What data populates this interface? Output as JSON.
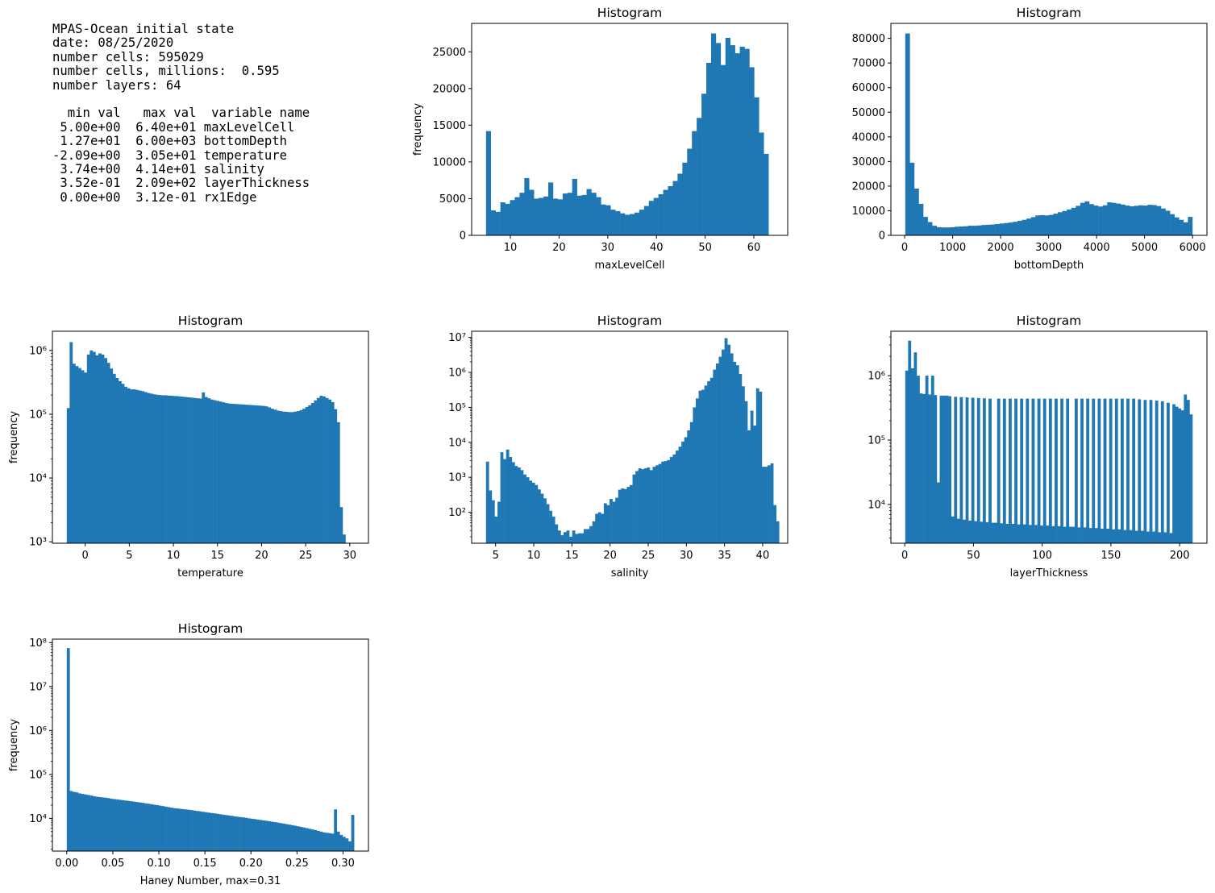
{
  "info": {
    "header_lines": [
      "MPAS-Ocean initial state",
      "date: 08/25/2020",
      "number cells: 595029",
      "number cells, millions:  0.595",
      "number layers: 64"
    ],
    "table_header": "  min val   max val  variable name",
    "table_rows": [
      {
        "min": "5.00e+00",
        "max": "6.40e+01",
        "name": "maxLevelCell"
      },
      {
        "min": "1.27e+01",
        "max": "6.00e+03",
        "name": "bottomDepth"
      },
      {
        "min": "-2.09e+00",
        "max": "3.05e+01",
        "name": "temperature"
      },
      {
        "min": "3.74e+00",
        "max": "4.14e+01",
        "name": "salinity"
      },
      {
        "min": "3.52e-01",
        "max": "2.09e+02",
        "name": "layerThickness"
      },
      {
        "min": "0.00e+00",
        "max": "3.12e-01",
        "name": "rx1Edge"
      }
    ]
  },
  "colors": {
    "bar": "#1f77b4",
    "axes": "#000000",
    "text": "#000000"
  },
  "chart_data": [
    {
      "type": "bar",
      "title": "Histogram",
      "xlabel": "maxLevelCell",
      "ylabel": "frequency",
      "yscale": "linear",
      "xlim": [
        2.05,
        66.95
      ],
      "ylim": [
        0,
        28875
      ],
      "xticks": [
        10,
        20,
        30,
        40,
        50,
        60
      ],
      "xtick_labels": [
        "10",
        "20",
        "30",
        "40",
        "50",
        "60"
      ],
      "yticks": [
        0,
        5000,
        10000,
        15000,
        20000,
        25000
      ],
      "ytick_labels": [
        "0",
        "5000",
        "10000",
        "15000",
        "20000",
        "25000"
      ],
      "bin_start": 5,
      "bin_width": 0.9833,
      "values": [
        14200,
        3400,
        3200,
        4500,
        4300,
        4800,
        5200,
        5800,
        7800,
        6200,
        5000,
        5100,
        5300,
        7200,
        5000,
        4900,
        5700,
        5800,
        7700,
        5400,
        5500,
        6300,
        5800,
        5200,
        4200,
        4100,
        3500,
        3300,
        3000,
        2800,
        2900,
        3100,
        3500,
        4000,
        4700,
        5100,
        5600,
        6200,
        6700,
        7400,
        8400,
        9900,
        11800,
        14200,
        16000,
        19300,
        23500,
        27500,
        26200,
        23200,
        26900,
        25900,
        24800,
        25700,
        25400,
        22900,
        18800,
        14000,
        11100
      ]
    },
    {
      "type": "bar",
      "title": "Histogram",
      "xlabel": "bottomDepth",
      "ylabel": "",
      "yscale": "linear",
      "xlim": [
        -286.9,
        6299.6
      ],
      "ylim": [
        0,
        86100
      ],
      "xticks": [
        0,
        1000,
        2000,
        3000,
        4000,
        5000,
        6000
      ],
      "xtick_labels": [
        "0",
        "1000",
        "2000",
        "3000",
        "4000",
        "5000",
        "6000"
      ],
      "yticks": [
        0,
        10000,
        20000,
        30000,
        40000,
        50000,
        60000,
        70000,
        80000
      ],
      "ytick_labels": [
        "0",
        "10000",
        "20000",
        "30000",
        "40000",
        "50000",
        "60000",
        "70000",
        "80000"
      ],
      "bin_start": 12.7,
      "bin_width": 93.5,
      "values": [
        82000,
        29500,
        19000,
        12800,
        7500,
        5400,
        3900,
        3300,
        3200,
        3200,
        3300,
        3500,
        3600,
        3700,
        3900,
        3900,
        4000,
        4200,
        4300,
        4400,
        4600,
        4800,
        5000,
        5200,
        5500,
        5900,
        6300,
        6800,
        7400,
        8100,
        8200,
        8100,
        8300,
        8800,
        9400,
        9900,
        10500,
        11200,
        12000,
        13200,
        13800,
        12700,
        12100,
        11700,
        12200,
        13400,
        13200,
        12900,
        12500,
        12100,
        11800,
        12000,
        12200,
        12100,
        12400,
        12300,
        11900,
        10900,
        10000,
        8600,
        7300,
        6300,
        5300,
        7500
      ]
    },
    {
      "type": "bar",
      "title": "Histogram",
      "xlabel": "temperature",
      "ylabel": "frequency",
      "yscale": "log",
      "ylim": [
        950,
        2000000
      ],
      "xlim": [
        -3.72,
        32.12
      ],
      "xticks": [
        0,
        5,
        10,
        15,
        20,
        25,
        30
      ],
      "xtick_labels": [
        "0",
        "5",
        "10",
        "15",
        "20",
        "25",
        "30"
      ],
      "yticks": [
        1000,
        10000,
        100000,
        1000000
      ],
      "ytick_labels": [
        "10^3",
        "10^4",
        "10^5",
        "10^6"
      ],
      "bin_start": -2.09,
      "bin_width": 0.3259,
      "values": [
        125000,
        1350000,
        620000,
        570000,
        530000,
        490000,
        450000,
        860000,
        1000000,
        950000,
        840000,
        900000,
        860000,
        760000,
        640000,
        520000,
        430000,
        370000,
        330000,
        300000,
        270000,
        255000,
        245000,
        245000,
        240000,
        235000,
        230000,
        222000,
        215000,
        210000,
        205000,
        202000,
        200000,
        198000,
        198000,
        196000,
        195000,
        193000,
        192000,
        190000,
        188000,
        186000,
        184000,
        182000,
        180000,
        178000,
        176000,
        220000,
        186000,
        178000,
        170000,
        166000,
        162000,
        158000,
        154000,
        150000,
        147000,
        146000,
        145000,
        144000,
        143000,
        142000,
        141000,
        140000,
        139000,
        138000,
        137000,
        136000,
        135000,
        133000,
        128000,
        122000,
        118000,
        114000,
        112000,
        110000,
        109000,
        108000,
        108000,
        110000,
        112000,
        116000,
        122000,
        130000,
        138000,
        150000,
        165000,
        180000,
        195000,
        190000,
        180000,
        170000,
        155000,
        120000,
        75000,
        3500,
        1300
      ]
    },
    {
      "type": "bar",
      "title": "Histogram",
      "xlabel": "salinity",
      "ylabel": "",
      "yscale": "log",
      "ylim": [
        13,
        15000000
      ],
      "xlim": [
        1.86,
        43.28
      ],
      "xticks": [
        5,
        10,
        15,
        20,
        25,
        30,
        35,
        40
      ],
      "xtick_labels": [
        "5",
        "10",
        "15",
        "20",
        "25",
        "30",
        "35",
        "40"
      ],
      "yticks": [
        100,
        1000,
        10000,
        100000,
        1000000,
        10000000
      ],
      "ytick_labels": [
        "10^2",
        "10^3",
        "10^4",
        "10^5",
        "10^6",
        "10^7"
      ],
      "bin_start": 3.74,
      "bin_width": 0.3766,
      "values": [
        2800,
        420,
        220,
        75,
        200,
        5200,
        3300,
        6200,
        3800,
        2700,
        2100,
        1900,
        1600,
        1200,
        1000,
        800,
        700,
        600,
        450,
        340,
        250,
        170,
        110,
        75,
        45,
        30,
        22,
        27,
        30,
        20,
        30,
        24,
        25,
        25,
        33,
        33,
        40,
        55,
        90,
        100,
        90,
        180,
        160,
        240,
        200,
        260,
        440,
        480,
        460,
        530,
        600,
        1200,
        1500,
        1800,
        1700,
        1800,
        1900,
        1600,
        2000,
        2200,
        2400,
        2800,
        2900,
        3100,
        3800,
        4500,
        5800,
        7500,
        10500,
        14000,
        22000,
        38000,
        100000,
        180000,
        300000,
        320000,
        420000,
        560000,
        700000,
        1200000,
        1800000,
        2800000,
        4500000,
        9500000,
        6200000,
        3500000,
        2000000,
        1600000,
        900000,
        400000,
        150000,
        22000,
        80000,
        30000,
        350000,
        280000,
        2000,
        2000,
        2200,
        2500,
        160,
        55
      ]
    },
    {
      "type": "bar",
      "title": "Histogram",
      "xlabel": "layerThickness",
      "ylabel": "",
      "yscale": "log",
      "ylim": [
        2500,
        4900000
      ],
      "xlim": [
        -10.08,
        219.88
      ],
      "xticks": [
        0,
        50,
        100,
        150,
        200
      ],
      "xtick_labels": [
        "0",
        "50",
        "100",
        "150",
        "200"
      ],
      "yticks": [
        10000,
        100000,
        1000000
      ],
      "ytick_labels": [
        "10^4",
        "10^5",
        "10^6"
      ],
      "bin_start": 0.352,
      "bin_width": 2.09,
      "values": [
        1200000,
        3500000,
        1300000,
        2300000,
        1000000,
        530000,
        520000,
        1000000,
        510000,
        1000000,
        500000,
        22000,
        490000,
        490000,
        490000,
        480000,
        6500,
        470000,
        6000,
        465000,
        5800,
        460000,
        5600,
        455000,
        5500,
        450000,
        5400,
        445000,
        5300,
        440000,
        5200,
        5200,
        440000,
        5100,
        440000,
        5000,
        440000,
        5000,
        440000,
        4900,
        440000,
        4900,
        440000,
        4800,
        440000,
        4800,
        440000,
        4700,
        440000,
        4700,
        440000,
        4600,
        440000,
        4600,
        440000,
        4500,
        440000,
        4500,
        4500,
        440000,
        4400,
        440000,
        4400,
        440000,
        4300,
        440000,
        4300,
        440000,
        4200,
        440000,
        4200,
        440000,
        4100,
        440000,
        4100,
        440000,
        4000,
        440000,
        4000,
        440000,
        3900,
        430000,
        3900,
        420000,
        3800,
        420000,
        3800,
        410000,
        3700,
        400000,
        3700,
        380000,
        3600,
        360000,
        330000,
        310000,
        290000,
        510000,
        420000,
        250000
      ]
    },
    {
      "type": "bar",
      "title": "Histogram",
      "xlabel": "Haney Number, max=0.31",
      "ylabel": "frequency",
      "yscale": "log",
      "ylim": [
        1800,
        120000000
      ],
      "xlim": [
        -0.0156,
        0.3276
      ],
      "xticks": [
        0,
        0.05,
        0.1,
        0.15,
        0.2,
        0.25,
        0.3
      ],
      "xtick_labels": [
        "0.00",
        "0.05",
        "0.10",
        "0.15",
        "0.20",
        "0.25",
        "0.30"
      ],
      "yticks": [
        10000,
        100000,
        1000000,
        10000000,
        100000000
      ],
      "ytick_labels": [
        "10^4",
        "10^5",
        "10^6",
        "10^7",
        "10^8"
      ],
      "bin_start": 0,
      "bin_width": 0.00312,
      "values": [
        75000000,
        42000,
        40000,
        39000,
        37000,
        36000,
        35000,
        34000,
        33000,
        32000,
        31000,
        30500,
        30000,
        29500,
        29000,
        28000,
        27500,
        27000,
        26500,
        26000,
        25500,
        25000,
        24500,
        24000,
        23500,
        23000,
        22500,
        22000,
        21500,
        21000,
        20500,
        20000,
        19500,
        19000,
        18500,
        18000,
        17500,
        17000,
        16800,
        16500,
        16200,
        16000,
        15700,
        15400,
        15000,
        14700,
        14400,
        14100,
        13800,
        13500,
        13200,
        13000,
        12700,
        12400,
        12100,
        11900,
        11600,
        11400,
        11100,
        10900,
        10700,
        10500,
        10300,
        10000,
        9800,
        9600,
        9400,
        9200,
        9000,
        8800,
        8600,
        8400,
        8200,
        8000,
        7800,
        7600,
        7400,
        7200,
        7000,
        6800,
        6600,
        6400,
        6200,
        6000,
        5800,
        5600,
        5400,
        5200,
        5000,
        4800,
        4700,
        4600,
        4500,
        16000,
        5000,
        4200,
        3800,
        3500,
        3000,
        12000
      ]
    }
  ]
}
